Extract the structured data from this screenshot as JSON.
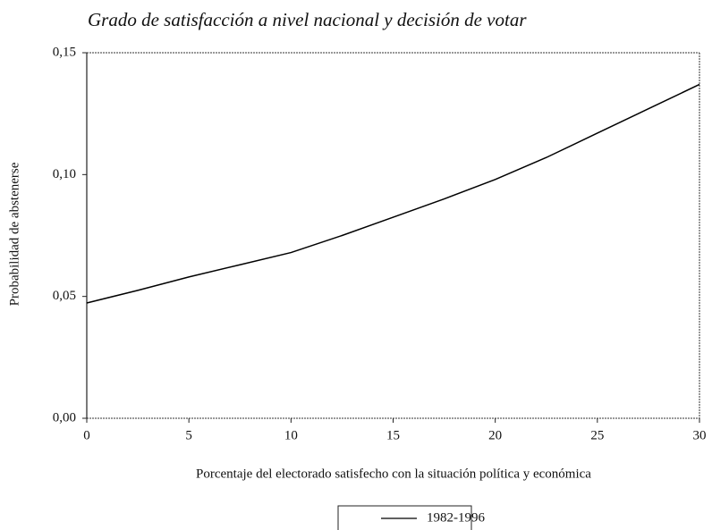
{
  "chart_data": {
    "type": "line",
    "title": "Grado de satisfacción a nivel nacional y decisión de votar",
    "x_label": "Porcentaje del electorado satisfecho con la situación política y económica",
    "y_label": "Probabilidad de abstenerse",
    "x": [
      0,
      2.5,
      5,
      7.5,
      10,
      12.5,
      15,
      17.5,
      20,
      22.5,
      25,
      27.5,
      30
    ],
    "series": [
      {
        "name": "1982-1996",
        "color": "#000000",
        "values": [
          0.0473,
          0.0525,
          0.058,
          0.063,
          0.068,
          0.075,
          0.0825,
          0.09,
          0.098,
          0.107,
          0.117,
          0.127,
          0.137
        ]
      }
    ],
    "xlim": [
      0,
      30
    ],
    "xticks": [
      0,
      5,
      10,
      15,
      20,
      25,
      30
    ],
    "ylim": [
      0,
      0.15
    ],
    "yticks": [
      {
        "value": 0,
        "label": "0,00"
      },
      {
        "value": 0.05,
        "label": "0,05"
      },
      {
        "value": 0.1,
        "label": "0,10"
      },
      {
        "value": 0.15,
        "label": "0,15"
      }
    ],
    "grid": false,
    "legend": "bottom"
  }
}
